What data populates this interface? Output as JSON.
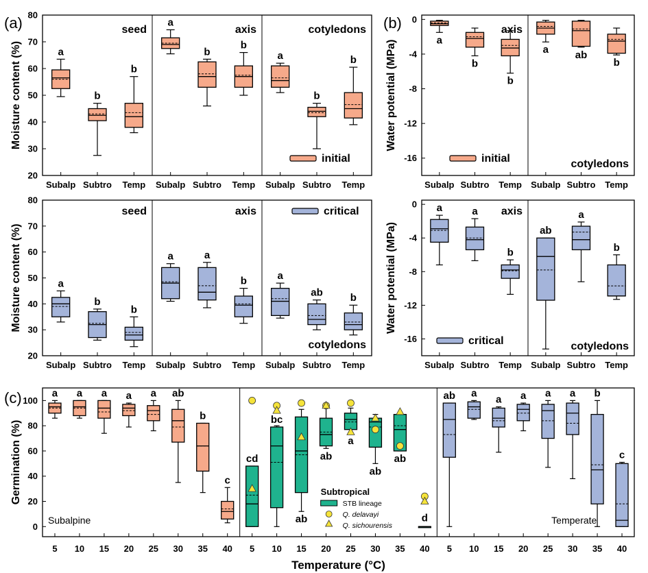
{
  "colors": {
    "initial": "#F6A98A",
    "critical": "#A4B4DA",
    "stb": "#1FB38E",
    "marker": "#F5E33A",
    "frame": "#000000",
    "separator": "#888888"
  },
  "labels": {
    "panel_a": "(a)",
    "panel_b": "(b)",
    "panel_c": "(c)"
  },
  "chart_data": [
    {
      "id": "a-initial",
      "type": "box",
      "ylabel": "Moisture content (%)",
      "ylim": [
        20,
        80
      ],
      "yticks": [
        20,
        30,
        40,
        50,
        60,
        70,
        80
      ],
      "categories": [
        "Subalp",
        "Subtro",
        "Temp"
      ],
      "legend": "initial",
      "facets": [
        {
          "title": "seed",
          "boxes": [
            {
              "min": 49.5,
              "q1": 52.5,
              "median": 56.5,
              "mean": 56,
              "q3": 59.5,
              "max": 63.5,
              "letter": "a"
            },
            {
              "min": 27.5,
              "q1": 40.5,
              "median": 42.5,
              "mean": 43,
              "q3": 45,
              "max": 47,
              "letter": "b"
            },
            {
              "min": 36,
              "q1": 38,
              "median": 42,
              "mean": 43.5,
              "q3": 47,
              "max": 57,
              "letter": "b"
            }
          ]
        },
        {
          "title": "axis",
          "boxes": [
            {
              "min": 65.5,
              "q1": 67.5,
              "median": 69,
              "mean": 69.5,
              "q3": 71.5,
              "max": 74.5,
              "letter": "a"
            },
            {
              "min": 46,
              "q1": 53,
              "median": 57,
              "mean": 58,
              "q3": 62.5,
              "max": 63.5,
              "letter": "b"
            },
            {
              "min": 50,
              "q1": 53,
              "median": 57,
              "mean": 57.5,
              "q3": 61,
              "max": 66,
              "letter": "b"
            }
          ]
        },
        {
          "title": "cotyledons",
          "boxes": [
            {
              "min": 51,
              "q1": 53,
              "median": 55.5,
              "mean": 56.5,
              "q3": 61,
              "max": 62,
              "letter": "a"
            },
            {
              "min": 30,
              "q1": 42,
              "median": 44,
              "mean": 43.5,
              "q3": 45.5,
              "max": 47,
              "letter": "b"
            },
            {
              "min": 39,
              "q1": 41.5,
              "median": 45,
              "mean": 46.5,
              "q3": 51,
              "max": 60.5,
              "letter": "b"
            }
          ]
        }
      ]
    },
    {
      "id": "b-initial",
      "type": "box",
      "ylabel": "Water potential (MPa)",
      "ylim": [
        -18,
        0.5
      ],
      "yticks": [
        0,
        -4,
        -8,
        -12,
        -16
      ],
      "categories": [
        "Subalp",
        "Subtro",
        "Temp"
      ],
      "legend": "initial",
      "facets": [
        {
          "title": "axis",
          "boxes": [
            {
              "min": -1.5,
              "q1": -0.7,
              "median": -0.5,
              "mean": -0.4,
              "q3": -0.2,
              "max": -0.1,
              "letter": "a"
            },
            {
              "min": -4.2,
              "q1": -3.2,
              "median": -2.2,
              "mean": -2.0,
              "q3": -1.5,
              "max": -1.0,
              "letter": "b"
            },
            {
              "min": -6.2,
              "q1": -4.2,
              "median": -3.3,
              "mean": -3.0,
              "q3": -2.3,
              "max": -1.3,
              "letter": "b"
            }
          ]
        },
        {
          "title": "cotyledons",
          "boxes": [
            {
              "min": -2.6,
              "q1": -1.7,
              "median": -1.0,
              "mean": -0.8,
              "q3": -0.3,
              "max": -0.1,
              "letter": "a"
            },
            {
              "min": -3.2,
              "q1": -3.1,
              "median": -1.3,
              "mean": -1.1,
              "q3": -0.2,
              "max": -0.1,
              "letter": "ab"
            },
            {
              "min": -4.1,
              "q1": -3.9,
              "median": -2.5,
              "mean": -2.3,
              "q3": -1.7,
              "max": -1.0,
              "letter": "b"
            }
          ]
        }
      ]
    },
    {
      "id": "a-critical",
      "type": "box",
      "ylabel": "Moisture content (%)",
      "ylim": [
        20,
        80
      ],
      "yticks": [
        20,
        30,
        40,
        50,
        60,
        70,
        80
      ],
      "categories": [
        "Subalp",
        "Subtro",
        "Temp"
      ],
      "legend": "critical",
      "facets": [
        {
          "title": "seed",
          "boxes": [
            {
              "min": 33,
              "q1": 35,
              "median": 40,
              "mean": 39,
              "q3": 42.5,
              "max": 45,
              "letter": "a"
            },
            {
              "min": 26,
              "q1": 27,
              "median": 32,
              "mean": 32.5,
              "q3": 37,
              "max": 38,
              "letter": "b"
            },
            {
              "min": 23.5,
              "q1": 26,
              "median": 28,
              "mean": 29,
              "q3": 31,
              "max": 35,
              "letter": "b"
            }
          ]
        },
        {
          "title": "axis",
          "boxes": [
            {
              "min": 41,
              "q1": 42,
              "median": 48,
              "mean": 48.5,
              "q3": 54,
              "max": 55.5,
              "letter": "a"
            },
            {
              "min": 38.5,
              "q1": 41.5,
              "median": 44.5,
              "mean": 47,
              "q3": 54,
              "max": 56,
              "letter": "a"
            },
            {
              "min": 32.5,
              "q1": 35,
              "median": 39.5,
              "mean": 40,
              "q3": 43,
              "max": 46,
              "letter": "b"
            }
          ]
        },
        {
          "title": "cotyledons",
          "boxes": [
            {
              "min": 34.5,
              "q1": 35.5,
              "median": 41,
              "mean": 42,
              "q3": 46,
              "max": 48,
              "letter": "a"
            },
            {
              "min": 30,
              "q1": 32,
              "median": 34,
              "mean": 35.5,
              "q3": 40,
              "max": 41.5,
              "letter": "ab"
            },
            {
              "min": 28,
              "q1": 30,
              "median": 32,
              "mean": 33,
              "q3": 36.5,
              "max": 39.5,
              "letter": "b"
            }
          ]
        }
      ]
    },
    {
      "id": "b-critical",
      "type": "box",
      "ylabel": "Water potential (MPa)",
      "ylim": [
        -18,
        0.5
      ],
      "yticks": [
        0,
        -4,
        -8,
        -12,
        -16
      ],
      "categories": [
        "Subalp",
        "Subtro",
        "Temp"
      ],
      "legend": "critical",
      "facets": [
        {
          "title": "axis",
          "boxes": [
            {
              "min": -7.2,
              "q1": -4.5,
              "median": -2.9,
              "mean": -3.1,
              "q3": -1.8,
              "max": -1.3,
              "letter": "a"
            },
            {
              "min": -6.7,
              "q1": -5.4,
              "median": -4.2,
              "mean": -4.0,
              "q3": -2.7,
              "max": -1.7,
              "letter": "a"
            },
            {
              "min": -10.7,
              "q1": -8.8,
              "median": -7.8,
              "mean": -7.9,
              "q3": -7.2,
              "max": -6.6,
              "letter": "b"
            }
          ]
        },
        {
          "title": "cotyledons",
          "boxes": [
            {
              "min": -17.2,
              "q1": -11.4,
              "median": -6.2,
              "mean": -7.8,
              "q3": -4.0,
              "max": -4.0,
              "letter": "ab"
            },
            {
              "min": -9.2,
              "q1": -5.4,
              "median": -4.2,
              "mean": -3.3,
              "q3": -2.6,
              "max": -2.1,
              "letter": "a"
            },
            {
              "min": -11.3,
              "q1": -10.9,
              "median": -10.9,
              "mean": -9.7,
              "q3": -7.2,
              "max": -6.0,
              "letter": "b"
            }
          ]
        }
      ]
    },
    {
      "id": "c-germination",
      "type": "box",
      "ylabel": "Germination (%)",
      "xlabel": "Temperature (°C)",
      "ylim": [
        -8,
        110
      ],
      "yticks": [
        0,
        20,
        40,
        60,
        80,
        100
      ],
      "categories": [
        "5",
        "10",
        "15",
        "20",
        "25",
        "30",
        "35",
        "40"
      ],
      "facets": [
        {
          "title": "Subalpine",
          "fill": "initial",
          "boxes": [
            {
              "min": 86,
              "q1": 90,
              "median": 95,
              "mean": 94,
              "q3": 98,
              "max": 100,
              "letter": "a"
            },
            {
              "min": 86,
              "q1": 88,
              "median": 95,
              "mean": 94,
              "q3": 100,
              "max": 100,
              "letter": "a"
            },
            {
              "min": 74,
              "q1": 86,
              "median": 94,
              "mean": 91,
              "q3": 100,
              "max": 100,
              "letter": "a"
            },
            {
              "min": 79,
              "q1": 88,
              "median": 94,
              "mean": 92,
              "q3": 97,
              "max": 98,
              "letter": "a"
            },
            {
              "min": 76,
              "q1": 84,
              "median": 92,
              "mean": 89,
              "q3": 96,
              "max": 100,
              "letter": "a"
            },
            {
              "min": 35,
              "q1": 67,
              "median": 84,
              "mean": 79,
              "q3": 93,
              "max": 100,
              "letter": "ab"
            },
            {
              "min": 27,
              "q1": 44,
              "median": 64,
              "mean": 64,
              "q3": 82,
              "max": 82,
              "letter": "b"
            },
            {
              "min": 3,
              "q1": 6,
              "median": 12,
              "mean": 14,
              "q3": 20,
              "max": 31,
              "letter": "c"
            }
          ]
        },
        {
          "title": "Subtropical",
          "fill": "stb",
          "legend_lines": [
            "STB lineage",
            "Q. delavayi",
            "Q. sichourensis"
          ],
          "boxes": [
            {
              "min": 0,
              "q1": 0,
              "median": 18,
              "mean": 25,
              "q3": 48,
              "max": 48,
              "letter": "cd",
              "circle": 100,
              "triangle": 30
            },
            {
              "min": 0,
              "q1": 15,
              "median": 64,
              "mean": 51,
              "q3": 79,
              "max": 80,
              "letter": "bc",
              "circle": 96,
              "triangle": 92
            },
            {
              "min": 12,
              "q1": 27,
              "median": 60,
              "mean": 57,
              "q3": 87,
              "max": 93,
              "letter": "ab",
              "circle": 98,
              "triangle": 71
            },
            {
              "min": 62,
              "q1": 64,
              "median": 73,
              "mean": 75,
              "q3": 86,
              "max": 97,
              "letter": "ab",
              "circle": 96,
              "triangle": 96
            },
            {
              "min": 74,
              "q1": 77,
              "median": 85,
              "mean": 83,
              "q3": 90,
              "max": 94,
              "letter": "a",
              "circle": 98,
              "triangle": 75
            },
            {
              "min": 50,
              "q1": 63,
              "median": 83,
              "mean": 79,
              "q3": 86,
              "max": 89,
              "letter": "ab",
              "circle": 77,
              "triangle": 86
            },
            {
              "min": 60,
              "q1": 60,
              "median": 77,
              "mean": 80,
              "q3": 89,
              "max": 89,
              "letter": "ab",
              "circle": 64,
              "triangle": 91
            },
            {
              "min": 0,
              "q1": 0,
              "median": 0,
              "mean": 0,
              "q3": 0,
              "max": 0,
              "letter": "d",
              "circle": 24,
              "triangle": 20
            }
          ]
        },
        {
          "title": "Temperate",
          "fill": "critical",
          "boxes": [
            {
              "min": 0,
              "q1": 55,
              "median": 85,
              "mean": 73,
              "q3": 98,
              "max": 98,
              "letter": "ab"
            },
            {
              "min": 85,
              "q1": 86,
              "median": 95,
              "mean": 93,
              "q3": 99,
              "max": 100,
              "letter": "a"
            },
            {
              "min": 59,
              "q1": 79,
              "median": 86,
              "mean": 84,
              "q3": 94,
              "max": 95,
              "letter": "a"
            },
            {
              "min": 76,
              "q1": 84,
              "median": 93,
              "mean": 90,
              "q3": 97,
              "max": 98,
              "letter": "a"
            },
            {
              "min": 47,
              "q1": 70,
              "median": 92,
              "mean": 84,
              "q3": 97,
              "max": 100,
              "letter": "a"
            },
            {
              "min": 38,
              "q1": 73,
              "median": 90,
              "mean": 82,
              "q3": 98,
              "max": 100,
              "letter": "a"
            },
            {
              "min": 0,
              "q1": 18,
              "median": 45,
              "mean": 49,
              "q3": 89,
              "max": 100,
              "letter": "b"
            },
            {
              "min": 0,
              "q1": 0,
              "median": 5,
              "mean": 18,
              "q3": 50,
              "max": 51,
              "letter": "c"
            }
          ]
        }
      ]
    }
  ]
}
